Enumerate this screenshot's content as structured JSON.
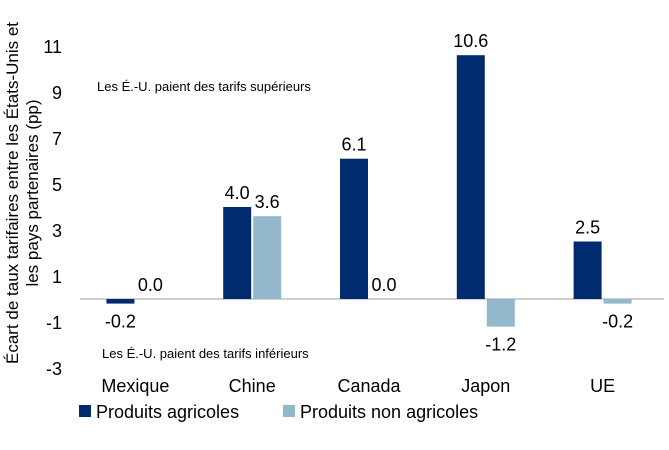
{
  "chart_data": {
    "type": "bar",
    "ylabel_lines": [
      "Écart de taux tarifaires entre les États-Unis et",
      "les pays partenaires (pp)"
    ],
    "categories": [
      "Mexique",
      "Chine",
      "Canada",
      "Japon",
      "UE"
    ],
    "series": [
      {
        "name": "Produits agricoles",
        "color": "#002b6e",
        "values": [
          -0.2,
          4.0,
          6.1,
          10.6,
          2.5
        ],
        "labels": [
          "-0.2",
          "4.0",
          "6.1",
          "10.6",
          "2.5"
        ]
      },
      {
        "name": "Produits non agricoles",
        "color": "#93b8cc",
        "values": [
          0.0,
          3.6,
          0.0,
          -1.2,
          -0.2
        ],
        "labels": [
          "0.0",
          "3.6",
          "0.0",
          "-1.2",
          "-0.2"
        ]
      }
    ],
    "yticks": [
      -3,
      -1,
      1,
      3,
      5,
      7,
      9,
      11
    ],
    "ylim": [
      -3,
      11
    ],
    "annotations": {
      "upper": "Les É.-U. paient des tarifs supérieurs",
      "lower": "Les É.-U. paient des tarifs inférieurs"
    },
    "legend_position": "bottom-left"
  }
}
